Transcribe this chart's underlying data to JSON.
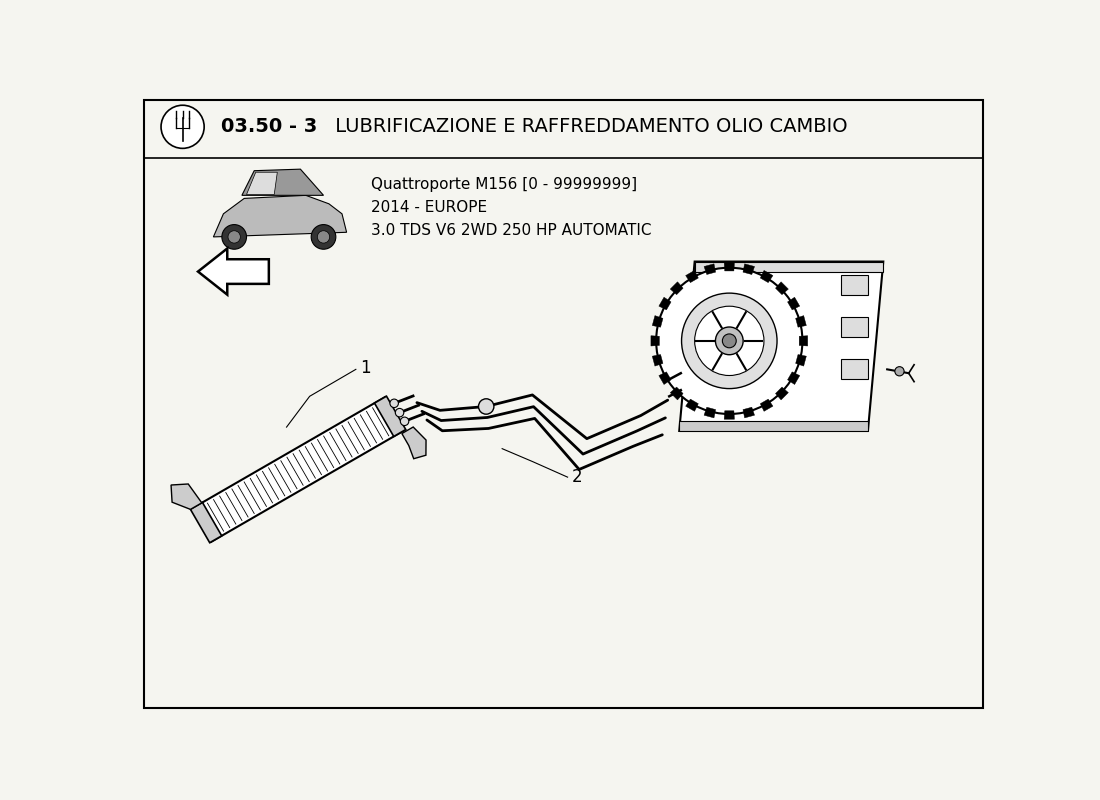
{
  "bg_color": "#f5f5f0",
  "border_color": "#000000",
  "title_bold": "03.50 - 3",
  "title_regular": " LUBRIFICAZIONE E RAFFREDDAMENTO OLIO CAMBIO",
  "subtitle_line1": "Quattroporte M156 [0 - 99999999]",
  "subtitle_line2": "2014 - EUROPE",
  "subtitle_line3": "3.0 TDS V6 2WD 250 HP AUTOMATIC",
  "part_label_1": "1",
  "part_label_2": "2",
  "title_fontsize": 14,
  "subtitle_fontsize": 11,
  "label_fontsize": 12
}
